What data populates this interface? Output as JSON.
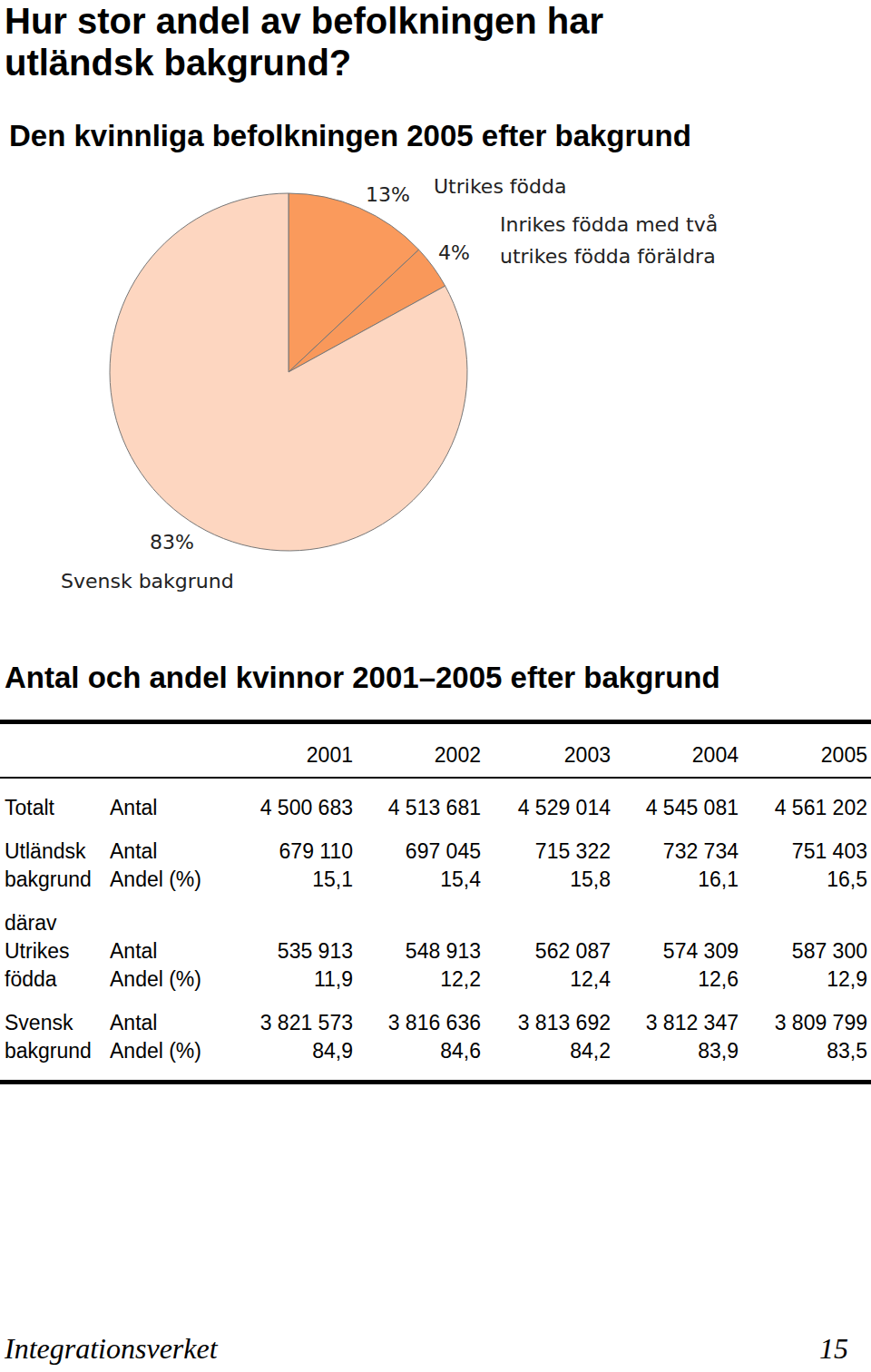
{
  "heading": "Hur stor andel av befolkningen har utländsk bakgrund?",
  "chart_data": {
    "type": "pie",
    "title": "Den kvinnliga befolkningen 2005 efter bakgrund",
    "categories": [
      "Utrikes födda",
      "Inrikes födda med två\nutrikes födda föräldra",
      "Svensk bakgrund"
    ],
    "values": [
      13,
      4,
      83
    ],
    "value_labels": [
      "13%",
      "4%",
      "83%"
    ],
    "colors": [
      "#fa9a5c",
      "#f9985a",
      "#fdd6c0"
    ]
  },
  "table": {
    "title": "Antal och andel kvinnor 2001–2005 efter bakgrund",
    "columns": [
      "2001",
      "2002",
      "2003",
      "2004",
      "2005"
    ],
    "groups": [
      {
        "label": [
          "Totalt"
        ],
        "measures": [
          "Antal"
        ],
        "values": [
          [
            "4 500 683",
            "4 513 681",
            "4 529 014",
            "4 545 081",
            "4 561 202"
          ]
        ]
      },
      {
        "label": [
          "Utländsk",
          "bakgrund"
        ],
        "measures": [
          "Antal",
          "Andel (%)"
        ],
        "values": [
          [
            "679 110",
            "697 045",
            "715 322",
            "732 734",
            "751 403"
          ],
          [
            "15,1",
            "15,4",
            "15,8",
            "16,1",
            "16,5"
          ]
        ]
      },
      {
        "label": [
          "därav",
          "Utrikes",
          "födda"
        ],
        "measures": [
          "Antal",
          "Andel (%)"
        ],
        "values": [
          [
            "535 913",
            "548 913",
            "562 087",
            "574 309",
            "587 300"
          ],
          [
            "11,9",
            "12,2",
            "12,4",
            "12,6",
            "12,9"
          ]
        ]
      },
      {
        "label": [
          "Svensk",
          "bakgrund"
        ],
        "measures": [
          "Antal",
          "Andel (%)"
        ],
        "values": [
          [
            "3 821 573",
            "3 816 636",
            "3 813 692",
            "3 812 347",
            "3 809 799"
          ],
          [
            "84,9",
            "84,6",
            "84,2",
            "83,9",
            "83,5"
          ]
        ]
      }
    ]
  },
  "footer": {
    "publisher": "Integrationsverket",
    "page": "15"
  }
}
